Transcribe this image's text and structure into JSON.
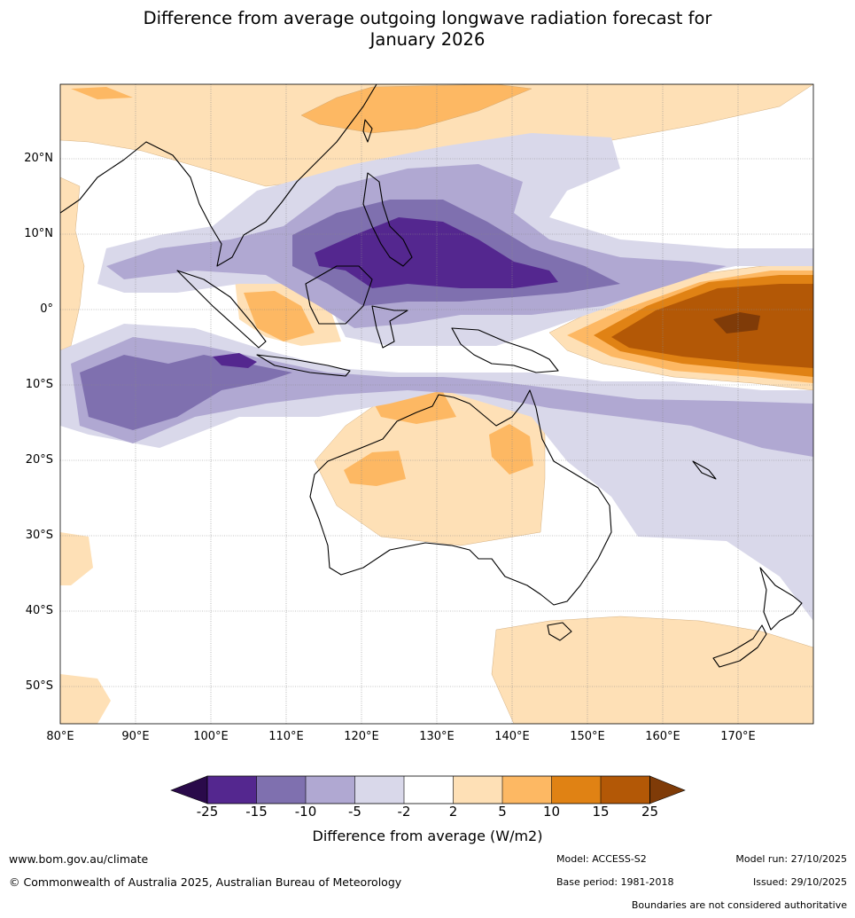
{
  "title_line1": "Difference from average outgoing longwave radiation forecast for",
  "title_line2": "January 2026",
  "lat_labels": [
    "20°N",
    "10°N",
    "0°",
    "10°S",
    "20°S",
    "30°S",
    "40°S",
    "50°S"
  ],
  "lon_labels": [
    "80°E",
    "90°E",
    "100°E",
    "110°E",
    "120°E",
    "130°E",
    "140°E",
    "150°E",
    "160°E",
    "170°E"
  ],
  "colorbar": {
    "title": "Difference from average (W/m2)",
    "tick_labels": [
      "-25",
      "-15",
      "-10",
      "-5",
      "-2",
      "2",
      "5",
      "10",
      "15",
      "25"
    ],
    "colors": [
      "#2a0a4a",
      "#54278f",
      "#7f70af",
      "#b0a8d2",
      "#d9d8ea",
      "#ffffff",
      "#fee0b6",
      "#fdb863",
      "#e08214",
      "#b35806",
      "#7f3b08"
    ]
  },
  "colors": {
    "border": "#000000",
    "grid": "#8a8a8a",
    "country": "#808080"
  },
  "footer": {
    "website": "www.bom.gov.au/climate",
    "copyright": "© Commonwealth of Australia 2025, Australian Bureau of Meteorology",
    "model": "Model: ACCESS-S2",
    "base_period": "Base period: 1981-2018",
    "model_run": "Model run: 27/10/2025",
    "issued": "Issued: 29/10/2025",
    "disclaimer": "Boundaries are not considered authoritative"
  }
}
